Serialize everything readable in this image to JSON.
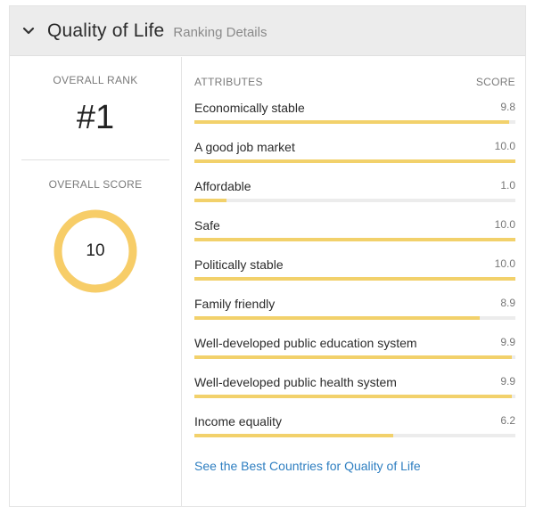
{
  "header": {
    "title": "Quality of Life",
    "subtitle": "Ranking Details"
  },
  "overall": {
    "rank_label": "OVERALL RANK",
    "rank": "#1",
    "score_label": "OVERALL SCORE",
    "score": "10",
    "score_value": 10,
    "score_max": 10
  },
  "columns": {
    "attributes": "ATTRIBUTES",
    "score": "SCORE"
  },
  "attributes": [
    {
      "name": "Economically stable",
      "value": 9.8,
      "score": "9.8"
    },
    {
      "name": "A good job market",
      "value": 10.0,
      "score": "10.0"
    },
    {
      "name": "Affordable",
      "value": 1.0,
      "score": "1.0"
    },
    {
      "name": "Safe",
      "value": 10.0,
      "score": "10.0"
    },
    {
      "name": "Politically stable",
      "value": 10.0,
      "score": "10.0"
    },
    {
      "name": "Family friendly",
      "value": 8.9,
      "score": "8.9"
    },
    {
      "name": "Well-developed public education system",
      "value": 9.9,
      "score": "9.9"
    },
    {
      "name": "Well-developed public health system",
      "value": 9.9,
      "score": "9.9"
    },
    {
      "name": "Income equality",
      "value": 6.2,
      "score": "6.2"
    }
  ],
  "score_max": 10,
  "link": "See the Best Countries for Quality of Life",
  "colors": {
    "bar_fill": "#f2d16b",
    "ring": "#f7cd68",
    "link": "#2f7fc1"
  }
}
